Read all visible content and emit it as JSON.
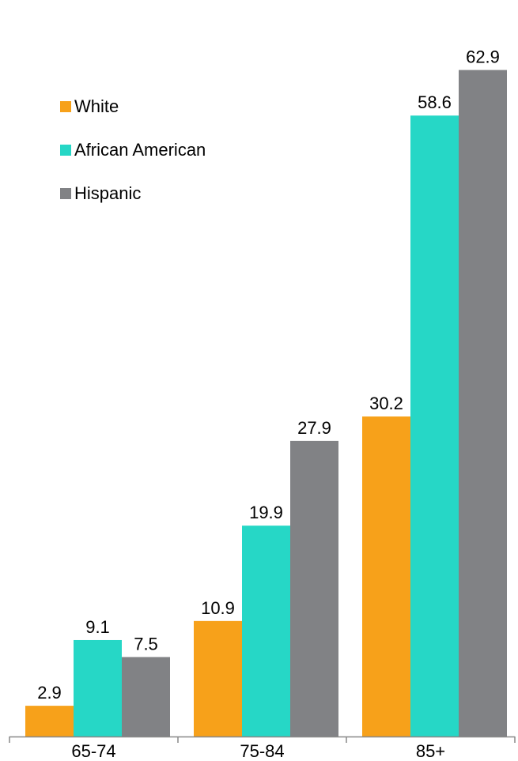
{
  "chart_data": {
    "type": "bar",
    "categories": [
      "65-74",
      "75-84",
      "85+"
    ],
    "series": [
      {
        "name": "White",
        "color": "#F7A11A",
        "values": [
          2.9,
          10.9,
          30.2
        ]
      },
      {
        "name": "African American",
        "color": "#26D7C6",
        "values": [
          9.1,
          19.9,
          58.6
        ]
      },
      {
        "name": "Hispanic",
        "color": "#818285",
        "values": [
          7.5,
          27.9,
          62.9
        ]
      }
    ],
    "ylim": [
      0,
      66.3
    ],
    "grid": false,
    "legend_position": "top-left",
    "axis_color": "#888888",
    "label_color": "#000000"
  }
}
